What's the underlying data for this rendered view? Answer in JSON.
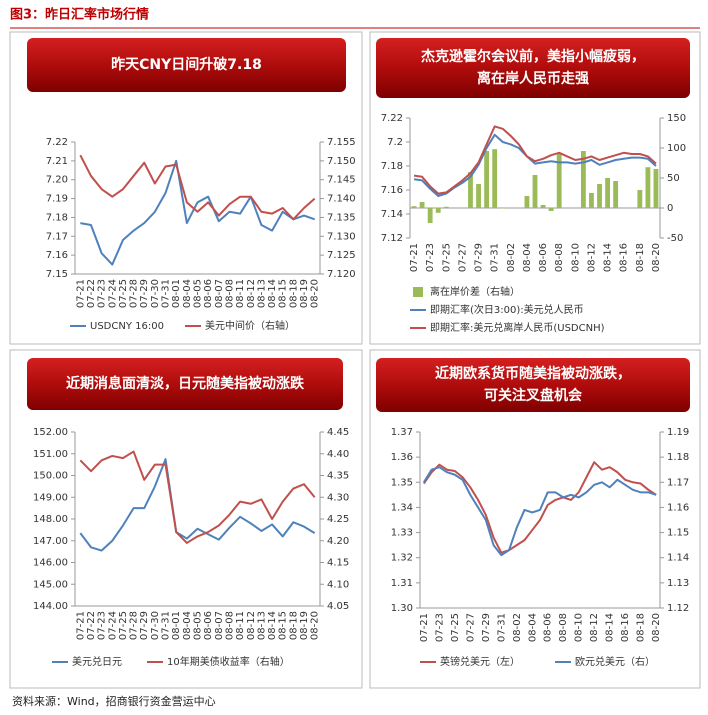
{
  "title": "图3：昨日汇率市场行情",
  "source": "资料来源：Wind，招商银行资金营运中心",
  "chart_data": [
    {
      "type": "line",
      "title": "昨天CNY日间升破7.18",
      "categories": [
        "07-21",
        "07-22",
        "07-23",
        "07-24",
        "07-25",
        "07-28",
        "07-29",
        "07-30",
        "07-31",
        "08-01",
        "08-04",
        "08-05",
        "08-06",
        "08-07",
        "08-08",
        "08-11",
        "08-12",
        "08-13",
        "08-14",
        "08-15",
        "08-18",
        "08-19",
        "08-20"
      ],
      "series": [
        {
          "name": "USDCNY 16:00",
          "color": "#4f81bd",
          "values": [
            7.177,
            7.176,
            7.161,
            7.155,
            7.168,
            7.173,
            7.177,
            7.183,
            7.193,
            7.21,
            7.177,
            7.188,
            7.191,
            7.178,
            7.183,
            7.182,
            7.191,
            7.176,
            7.173,
            7.183,
            7.179,
            7.181,
            7.179
          ]
        },
        {
          "name": "美元中间价（右轴）",
          "color": "#c0504d",
          "axis": "y2",
          "values": [
            7.1515,
            7.146,
            7.1425,
            7.1405,
            7.1425,
            7.146,
            7.1495,
            7.144,
            7.1485,
            7.149,
            7.139,
            7.1365,
            7.139,
            7.1355,
            7.1385,
            7.1405,
            7.1405,
            7.1365,
            7.136,
            7.1375,
            7.1345,
            7.1375,
            7.14
          ]
        }
      ],
      "ylim": [
        7.15,
        7.22
      ],
      "yticks": [
        7.15,
        7.16,
        7.17,
        7.18,
        7.19,
        {
          "value": 7.2,
          "label": "7.20"
        },
        7.21,
        7.22
      ],
      "y2lim": [
        7.12,
        7.155
      ],
      "y2ticks": [
        {
          "value": 7.12,
          "label": "7.120"
        },
        7.125,
        {
          "value": 7.13,
          "label": "7.130"
        },
        7.135,
        {
          "value": 7.14,
          "label": "7.140"
        },
        7.145,
        {
          "value": 7.15,
          "label": "7.150"
        },
        7.155
      ],
      "grid": false
    },
    {
      "type": "combo",
      "title": [
        "杰克逊霍尔会议前，美指小幅疲弱，",
        "离在岸人民币走强"
      ],
      "categories": [
        "07-21",
        null,
        "07-23",
        null,
        "07-25",
        null,
        "07-27",
        null,
        "07-29",
        null,
        "07-31",
        null,
        "08-02",
        null,
        "08-04",
        null,
        "08-06",
        null,
        "08-08",
        null,
        "08-10",
        null,
        "08-12",
        null,
        "08-14",
        null,
        "08-16",
        null,
        "08-18",
        null,
        "08-20"
      ],
      "series": [
        {
          "name": "离在岸价差（右轴）",
          "type": "bar",
          "color": "#9bbb59",
          "axis": "y2",
          "values": [
            3,
            10,
            -25,
            -8,
            2,
            null,
            null,
            60,
            40,
            95,
            98,
            0,
            null,
            null,
            20,
            55,
            5,
            -5,
            90,
            null,
            null,
            95,
            25,
            40,
            50,
            45,
            null,
            null,
            30,
            68,
            65
          ]
        },
        {
          "name": "即期汇率(次日3:00):美元兑人民币",
          "type": "line",
          "color": "#4f81bd",
          "values": [
            7.169,
            7.168,
            7.161,
            7.155,
            7.157,
            7.162,
            7.166,
            7.171,
            7.181,
            7.195,
            7.206,
            7.2,
            7.198,
            7.195,
            7.188,
            7.182,
            7.183,
            7.184,
            7.183,
            7.183,
            7.182,
            7.183,
            7.185,
            7.181,
            7.183,
            7.185,
            7.186,
            7.187,
            7.187,
            7.186,
            7.18
          ]
        },
        {
          "name": "即期汇率:美元兑离岸人民币(USDCNH)",
          "type": "line",
          "color": "#c0504d",
          "values": [
            7.172,
            7.171,
            7.163,
            7.157,
            7.158,
            7.163,
            7.168,
            7.174,
            7.183,
            7.198,
            7.213,
            7.211,
            7.205,
            7.198,
            7.188,
            7.184,
            7.186,
            7.189,
            7.191,
            7.188,
            7.185,
            7.186,
            7.188,
            7.185,
            7.187,
            7.189,
            7.191,
            7.19,
            7.19,
            7.188,
            7.182
          ]
        }
      ],
      "ylim": [
        7.12,
        7.22
      ],
      "yticks": [
        7.12,
        7.14,
        7.16,
        7.18,
        7.2,
        7.22
      ],
      "y2lim": [
        -50,
        150
      ],
      "y2ticks": [
        -50,
        0,
        50,
        100,
        150
      ],
      "grid": false
    },
    {
      "type": "line",
      "title": "近期消息面清淡，日元随美指被动涨跌",
      "categories": [
        "07-21",
        "07-22",
        "07-23",
        "07-24",
        "07-25",
        "07-28",
        "07-29",
        "07-30",
        "07-31",
        "08-01",
        "08-04",
        "08-05",
        "08-06",
        "08-07",
        "08-08",
        "08-11",
        "08-12",
        "08-13",
        "08-14",
        "08-15",
        "08-18",
        "08-19",
        "08-20"
      ],
      "series": [
        {
          "name": "美元兑日元",
          "color": "#4f81bd",
          "values": [
            147.35,
            146.7,
            146.55,
            147.0,
            147.7,
            148.5,
            148.5,
            149.5,
            150.75,
            147.4,
            147.1,
            147.55,
            147.3,
            147.05,
            147.6,
            148.1,
            147.8,
            147.45,
            147.75,
            147.2,
            147.85,
            147.65,
            147.35
          ]
        },
        {
          "name": "10年期美债收益率（右轴）",
          "color": "#c0504d",
          "axis": "y2",
          "values": [
            4.385,
            4.36,
            4.385,
            4.395,
            4.39,
            4.405,
            4.34,
            4.375,
            4.375,
            4.22,
            4.195,
            4.21,
            4.22,
            4.235,
            4.26,
            4.29,
            4.285,
            4.295,
            4.25,
            4.29,
            4.32,
            4.33,
            4.3
          ]
        }
      ],
      "ylim": [
        144,
        152
      ],
      "yticks": [
        {
          "value": 144,
          "label": "144.00"
        },
        {
          "value": 145,
          "label": "145.00"
        },
        {
          "value": 146,
          "label": "146.00"
        },
        {
          "value": 147,
          "label": "147.00"
        },
        {
          "value": 148,
          "label": "148.00"
        },
        {
          "value": 149,
          "label": "149.00"
        },
        {
          "value": 150,
          "label": "150.00"
        },
        {
          "value": 151,
          "label": "151.00"
        },
        {
          "value": 152,
          "label": "152.00"
        }
      ],
      "y2lim": [
        4.05,
        4.45
      ],
      "y2ticks": [
        4.05,
        {
          "value": 4.1,
          "label": "4.10"
        },
        4.15,
        {
          "value": 4.2,
          "label": "4.20"
        },
        4.25,
        {
          "value": 4.3,
          "label": "4.30"
        },
        4.35,
        {
          "value": 4.4,
          "label": "4.40"
        },
        4.45
      ],
      "grid": false
    },
    {
      "type": "line",
      "title": [
        "近期欧系货币随美指被动涨跌，",
        "可关注叉盘机会"
      ],
      "categories": [
        "07-21",
        null,
        "07-23",
        null,
        "07-25",
        null,
        "07-27",
        null,
        "07-29",
        null,
        "07-31",
        null,
        "08-02",
        null,
        "08-04",
        null,
        "08-06",
        null,
        "08-08",
        null,
        "08-10",
        null,
        "08-12",
        null,
        "08-14",
        null,
        "08-16",
        null,
        "08-18",
        null,
        "08-20"
      ],
      "series": [
        {
          "name": "英镑兑美元（左）",
          "color": "#c0504d",
          "values": [
            1.3495,
            1.354,
            1.357,
            1.355,
            1.3545,
            1.352,
            1.348,
            1.343,
            1.337,
            1.328,
            1.322,
            1.323,
            1.325,
            1.327,
            1.331,
            1.335,
            1.341,
            1.343,
            1.344,
            1.343,
            1.346,
            1.352,
            1.358,
            1.355,
            1.356,
            1.354,
            1.351,
            1.35,
            1.3495,
            1.347,
            1.345
          ]
        },
        {
          "name": "欧元兑美元（右）",
          "color": "#4f81bd",
          "axis": "y2",
          "values": [
            1.17,
            1.175,
            1.176,
            1.174,
            1.173,
            1.171,
            1.165,
            1.16,
            1.155,
            1.145,
            1.141,
            1.143,
            1.152,
            1.159,
            1.158,
            1.159,
            1.166,
            1.166,
            1.164,
            1.165,
            1.164,
            1.166,
            1.169,
            1.17,
            1.168,
            1.171,
            1.169,
            1.167,
            1.166,
            1.166,
            1.165
          ]
        }
      ],
      "ylim": [
        1.3,
        1.37
      ],
      "yticks": [
        {
          "value": 1.3,
          "label": "1.30"
        },
        1.31,
        1.32,
        1.33,
        1.34,
        1.35,
        1.36,
        1.37
      ],
      "y2lim": [
        1.12,
        1.19
      ],
      "y2ticks": [
        1.12,
        1.13,
        1.14,
        1.15,
        1.16,
        1.17,
        1.18,
        1.19
      ],
      "grid": false
    }
  ]
}
